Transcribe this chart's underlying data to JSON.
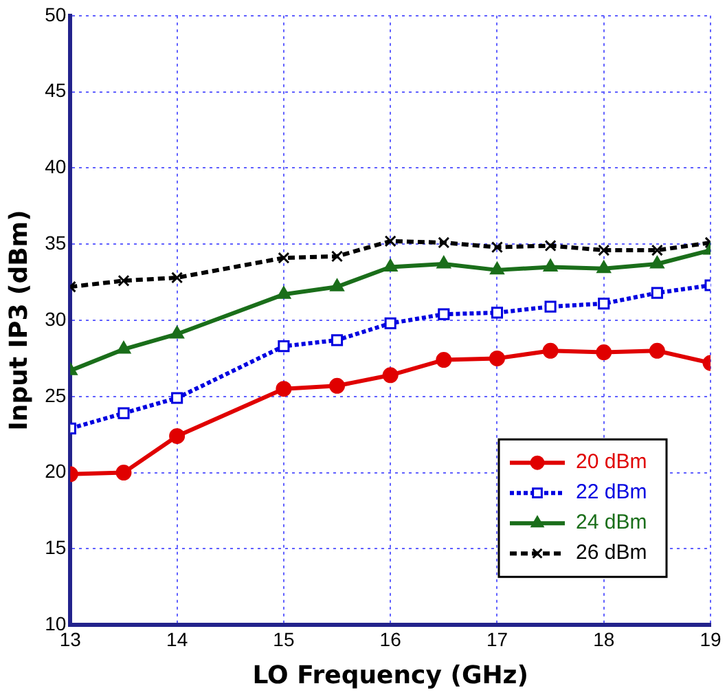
{
  "chart_data": {
    "type": "line",
    "xlabel": "LO Frequency (GHz)",
    "ylabel": "Input IP3 (dBm)",
    "x": [
      13,
      13.5,
      14,
      15,
      15.5,
      16,
      16.5,
      17,
      17.5,
      18,
      18.5,
      19
    ],
    "series": [
      {
        "name": "20 dBm",
        "color": "#e00000",
        "marker": "circle",
        "line_style": "solid",
        "values": [
          19.9,
          20.0,
          22.4,
          25.5,
          25.7,
          26.4,
          27.4,
          27.5,
          28.0,
          27.9,
          28.0,
          27.2
        ]
      },
      {
        "name": "22 dBm",
        "color": "#0000e0",
        "marker": "square",
        "line_style": "dotted",
        "values": [
          22.9,
          23.9,
          24.9,
          28.3,
          28.7,
          29.8,
          30.4,
          30.5,
          30.9,
          31.1,
          31.8,
          32.3
        ]
      },
      {
        "name": "24 dBm",
        "color": "#1a6e1a",
        "marker": "triangle",
        "line_style": "solid",
        "values": [
          26.7,
          28.1,
          29.1,
          31.7,
          32.2,
          33.5,
          33.7,
          33.3,
          33.5,
          33.4,
          33.7,
          34.6
        ]
      },
      {
        "name": "26 dBm",
        "color": "#000000",
        "marker": "cross",
        "line_style": "dashed",
        "values": [
          32.2,
          32.6,
          32.8,
          34.1,
          34.2,
          35.2,
          35.1,
          34.8,
          34.9,
          34.6,
          34.6,
          35.1
        ]
      }
    ],
    "xlim": [
      13,
      19
    ],
    "xticks": [
      13,
      14,
      15,
      16,
      17,
      18,
      19
    ],
    "ylim": [
      10,
      50
    ],
    "yticks": [
      10,
      15,
      20,
      25,
      30,
      35,
      40,
      45,
      50
    ],
    "grid": true,
    "legend": "bottom right"
  }
}
